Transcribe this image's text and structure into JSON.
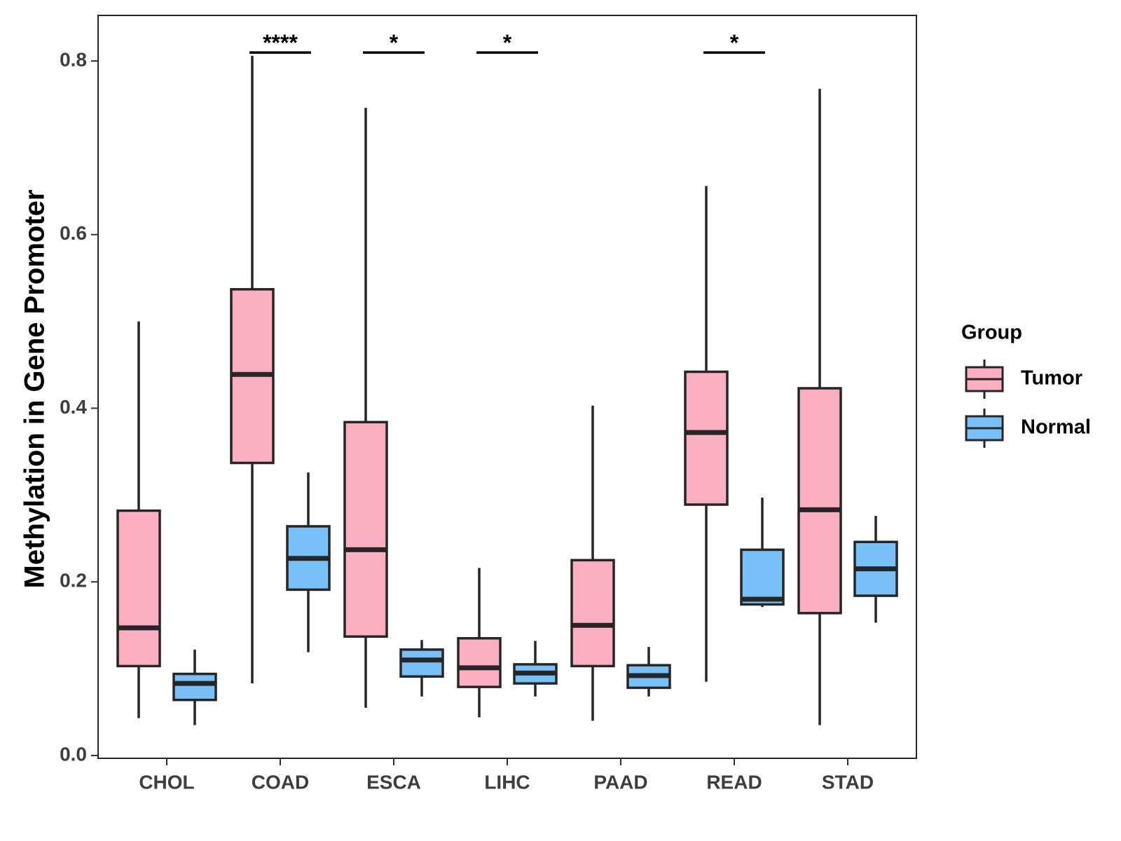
{
  "chart_data": {
    "type": "boxplot",
    "title": "",
    "xlabel": "",
    "ylabel": "Methylation in Gene Promoter",
    "ylim": [
      0,
      0.85
    ],
    "yticks": [
      0.0,
      0.2,
      0.4,
      0.6,
      0.8
    ],
    "ytick_labels": [
      "0.0",
      "0.2",
      "0.4",
      "0.6",
      "0.8"
    ],
    "categories": [
      "CHOL",
      "COAD",
      "ESCA",
      "LIHC",
      "PAAD",
      "READ",
      "STAD"
    ],
    "legend": {
      "title": "Group",
      "position": "right",
      "entries": [
        {
          "name": "Tumor",
          "color": "#fbafc1"
        },
        {
          "name": "Normal",
          "color": "#78c1f8"
        }
      ]
    },
    "series": [
      {
        "name": "Tumor",
        "color": "#fbafc1",
        "boxes": [
          {
            "category": "CHOL",
            "min": 0.043,
            "q1": 0.103,
            "median": 0.147,
            "q3": 0.282,
            "max": 0.5
          },
          {
            "category": "COAD",
            "min": 0.083,
            "q1": 0.337,
            "median": 0.439,
            "q3": 0.537,
            "max": 0.806
          },
          {
            "category": "ESCA",
            "min": 0.055,
            "q1": 0.137,
            "median": 0.237,
            "q3": 0.384,
            "max": 0.746
          },
          {
            "category": "LIHC",
            "min": 0.044,
            "q1": 0.079,
            "median": 0.101,
            "q3": 0.135,
            "max": 0.216
          },
          {
            "category": "PAAD",
            "min": 0.04,
            "q1": 0.103,
            "median": 0.15,
            "q3": 0.225,
            "max": 0.403
          },
          {
            "category": "READ",
            "min": 0.085,
            "q1": 0.289,
            "median": 0.372,
            "q3": 0.442,
            "max": 0.656
          },
          {
            "category": "STAD",
            "min": 0.035,
            "q1": 0.164,
            "median": 0.283,
            "q3": 0.423,
            "max": 0.768
          }
        ]
      },
      {
        "name": "Normal",
        "color": "#78c1f8",
        "boxes": [
          {
            "category": "CHOL",
            "min": 0.035,
            "q1": 0.064,
            "median": 0.083,
            "q3": 0.094,
            "max": 0.122
          },
          {
            "category": "COAD",
            "min": 0.119,
            "q1": 0.191,
            "median": 0.227,
            "q3": 0.264,
            "max": 0.326
          },
          {
            "category": "ESCA",
            "min": 0.068,
            "q1": 0.091,
            "median": 0.11,
            "q3": 0.122,
            "max": 0.133
          },
          {
            "category": "LIHC",
            "min": 0.068,
            "q1": 0.083,
            "median": 0.095,
            "q3": 0.105,
            "max": 0.132
          },
          {
            "category": "PAAD",
            "min": 0.068,
            "q1": 0.078,
            "median": 0.092,
            "q3": 0.104,
            "max": 0.125
          },
          {
            "category": "READ",
            "min": 0.171,
            "q1": 0.174,
            "median": 0.18,
            "q3": 0.237,
            "max": 0.297
          },
          {
            "category": "STAD",
            "min": 0.153,
            "q1": 0.184,
            "median": 0.215,
            "q3": 0.246,
            "max": 0.276
          }
        ]
      }
    ],
    "significance": [
      {
        "category": "COAD",
        "label": "****"
      },
      {
        "category": "ESCA",
        "label": "*"
      },
      {
        "category": "LIHC",
        "label": "*"
      },
      {
        "category": "READ",
        "label": "*"
      }
    ],
    "grid": false
  }
}
